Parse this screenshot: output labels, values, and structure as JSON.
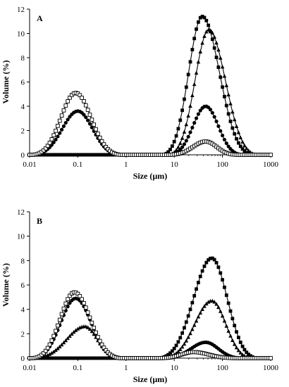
{
  "chart_data": [
    {
      "type": "scatter",
      "panel_label": "A",
      "xlabel": "Size (µm)",
      "ylabel": "Volume (%)",
      "x_scale": "log",
      "xlim": [
        0.01,
        1000
      ],
      "ylim": [
        0,
        12
      ],
      "x_ticks": [
        "0.01",
        "0.1",
        "1",
        "10",
        "100",
        "1000"
      ],
      "y_ticks": [
        "0",
        "2",
        "4",
        "6",
        "8",
        "10",
        "12"
      ],
      "grid": false,
      "series": [
        {
          "marker": "filled-square",
          "peaks": [
            {
              "center": 38,
              "height": 11.4,
              "range": [
                6,
                400
              ]
            }
          ]
        },
        {
          "marker": "filled-triangle",
          "peaks": [
            {
              "center": 52,
              "height": 10.3,
              "range": [
                8,
                500
              ]
            }
          ]
        },
        {
          "marker": "filled-circle",
          "peaks": [
            {
              "center": 0.1,
              "height": 3.6,
              "range": [
                0.012,
                0.75
              ]
            },
            {
              "center": 45,
              "height": 4.0,
              "range": [
                8,
                250
              ]
            }
          ]
        },
        {
          "marker": "open-square",
          "peaks": [
            {
              "center": 0.09,
              "height": 5.1,
              "range": [
                0.012,
                0.75
              ]
            },
            {
              "center": 45,
              "height": 1.1,
              "range": [
                8,
                200
              ]
            }
          ]
        }
      ]
    },
    {
      "type": "scatter",
      "panel_label": "B",
      "xlabel": "Size (µm)",
      "ylabel": "Volume (%)",
      "x_scale": "log",
      "xlim": [
        0.01,
        1000
      ],
      "ylim": [
        0,
        12
      ],
      "x_ticks": [
        "0.01",
        "0.1",
        "1",
        "10",
        "100",
        "1000"
      ],
      "y_ticks": [
        "0",
        "2",
        "4",
        "6",
        "8",
        "10",
        "12"
      ],
      "grid": false,
      "series": [
        {
          "marker": "filled-square",
          "peaks": [
            {
              "center": 60,
              "height": 8.2,
              "range": [
                5,
                500
              ]
            }
          ]
        },
        {
          "marker": "filled-triangle",
          "peaks": [
            {
              "center": 0.14,
              "height": 2.6,
              "range": [
                0.012,
                0.75
              ]
            },
            {
              "center": 60,
              "height": 4.7,
              "range": [
                6,
                400
              ]
            }
          ]
        },
        {
          "marker": "filled-circle",
          "peaks": [
            {
              "center": 0.09,
              "height": 4.9,
              "range": [
                0.012,
                0.75
              ]
            },
            {
              "center": 45,
              "height": 1.3,
              "range": [
                6,
                250
              ]
            }
          ]
        },
        {
          "marker": "open-square",
          "peaks": [
            {
              "center": 0.085,
              "height": 5.4,
              "range": [
                0.012,
                0.75
              ]
            },
            {
              "center": 25,
              "height": 0.5,
              "range": [
                5,
                200
              ]
            }
          ]
        }
      ]
    }
  ]
}
